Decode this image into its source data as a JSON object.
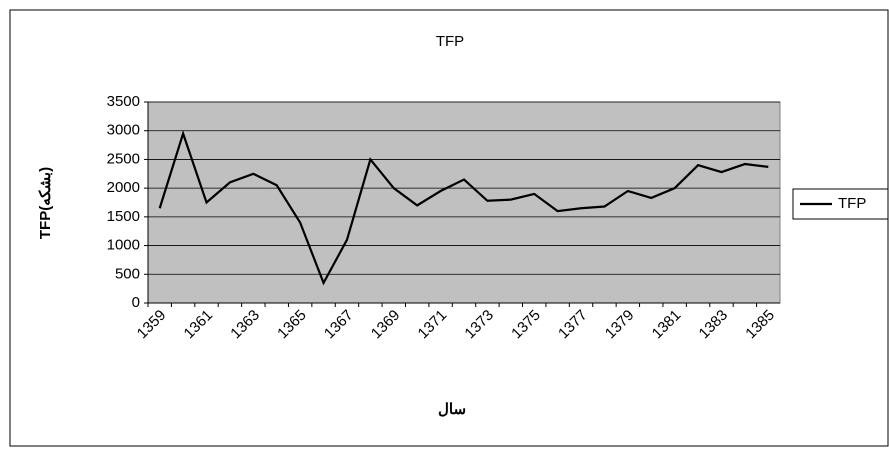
{
  "chart_data": {
    "type": "line",
    "title": "TFP",
    "x_label": "سال",
    "y_label": "TFP(بشکه)",
    "categories": [
      "1359",
      null,
      "1361",
      null,
      "1363",
      null,
      "1365",
      null,
      "1367",
      null,
      "1369",
      null,
      "1371",
      null,
      "1373",
      null,
      "1375",
      null,
      "1377",
      null,
      "1379",
      null,
      "1381",
      null,
      "1383",
      null,
      "1385"
    ],
    "series": [
      {
        "name": "TFP",
        "color": "#000000",
        "values": [
          1650,
          2950,
          1750,
          2100,
          2250,
          2050,
          1400,
          350,
          1100,
          2500,
          2000,
          1700,
          1950,
          2150,
          1780,
          1800,
          1900,
          1600,
          1650,
          1680,
          1950,
          1830,
          2000,
          2400,
          2280,
          2420,
          2370
        ]
      }
    ],
    "ylim": [
      0,
      3500
    ],
    "yticks": [
      0,
      500,
      1000,
      1500,
      2000,
      2500,
      3000,
      3500
    ],
    "grid": true,
    "legend": "right"
  }
}
